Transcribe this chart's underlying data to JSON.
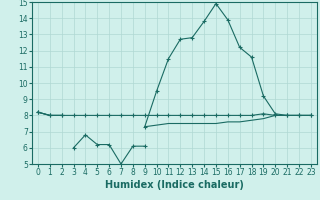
{
  "xlabel": "Humidex (Indice chaleur)",
  "x": [
    0,
    1,
    2,
    3,
    4,
    5,
    6,
    7,
    8,
    9,
    10,
    11,
    12,
    13,
    14,
    15,
    16,
    17,
    18,
    19,
    20,
    21,
    22,
    23
  ],
  "line_flat_y": [
    8.2,
    8.0,
    8.0,
    8.0,
    8.0,
    8.0,
    8.0,
    8.0,
    8.0,
    8.0,
    8.0,
    8.0,
    8.0,
    8.0,
    8.0,
    8.0,
    8.0,
    8.0,
    8.0,
    8.1,
    8.0,
    8.0,
    8.0,
    8.0
  ],
  "line_dip_x": [
    3,
    4,
    5,
    6,
    7,
    8,
    9
  ],
  "line_dip_y": [
    6.0,
    6.8,
    6.2,
    6.2,
    5.0,
    6.1,
    6.1
  ],
  "line_peak_x": [
    0,
    1,
    2,
    9,
    10,
    11,
    12,
    13,
    14,
    15,
    16,
    17,
    18,
    19,
    20,
    21,
    22,
    23
  ],
  "line_peak_y": [
    8.2,
    8.0,
    8.0,
    7.3,
    9.5,
    11.5,
    12.7,
    12.8,
    13.8,
    14.9,
    13.9,
    12.2,
    11.6,
    9.2,
    8.1,
    8.0,
    8.0,
    8.0
  ],
  "line_bot_x": [
    0,
    1,
    2,
    9,
    10,
    11,
    12,
    13,
    14,
    15,
    16,
    17,
    18,
    19,
    20,
    21,
    22,
    23
  ],
  "line_bot_y": [
    8.2,
    8.0,
    8.0,
    7.3,
    7.4,
    7.5,
    7.5,
    7.5,
    7.5,
    7.5,
    7.6,
    7.6,
    7.7,
    7.8,
    8.0,
    8.0,
    8.0,
    8.0
  ],
  "ylim": [
    5,
    15
  ],
  "yticks": [
    5,
    6,
    7,
    8,
    9,
    10,
    11,
    12,
    13,
    14,
    15
  ],
  "xlim": [
    -0.5,
    23.5
  ],
  "xticks": [
    0,
    1,
    2,
    3,
    4,
    5,
    6,
    7,
    8,
    9,
    10,
    11,
    12,
    13,
    14,
    15,
    16,
    17,
    18,
    19,
    20,
    21,
    22,
    23
  ],
  "line_color": "#1a6b63",
  "bg_color": "#d0f0eb",
  "grid_color": "#b0d8d3",
  "tick_fontsize": 5.5,
  "xlabel_fontsize": 7
}
